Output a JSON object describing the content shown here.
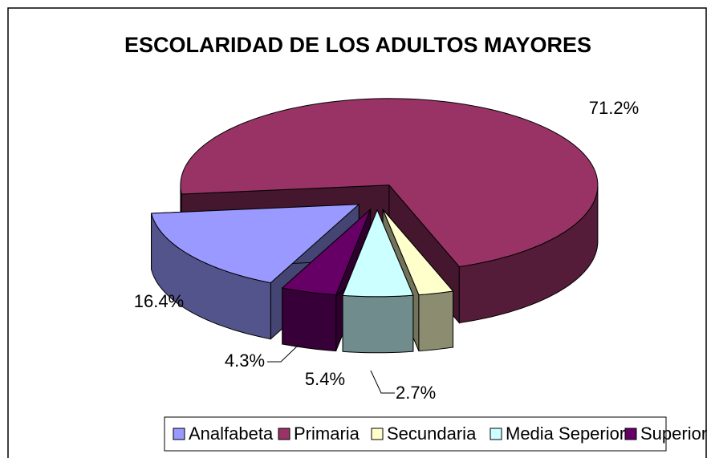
{
  "chart_data": {
    "type": "pie3d",
    "title": "ESCOLARIDAD DE LOS ADULTOS MAYORES",
    "categories": [
      "Analfabeta",
      "Primaria",
      "Secundaria",
      "Media Seperior",
      "Superior"
    ],
    "values": [
      16.4,
      71.2,
      2.7,
      5.4,
      4.3
    ],
    "value_labels": [
      "16.4%",
      "71.2%",
      "2.7%",
      "5.4%",
      "4.3%"
    ],
    "colors": [
      "#9999ff",
      "#993366",
      "#ffffcc",
      "#ccffff",
      "#660066"
    ],
    "legend": "bottom"
  }
}
